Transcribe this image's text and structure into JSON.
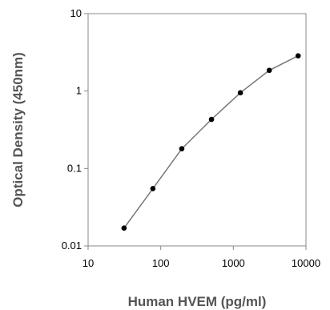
{
  "chart_data": {
    "type": "line",
    "x_scale": "log",
    "y_scale": "log",
    "xlabel": "Human HVEM (pg/ml)",
    "ylabel": "Optical Density (450nm)",
    "xlim": [
      10,
      10000
    ],
    "ylim": [
      0.01,
      10
    ],
    "x_ticks": [
      "10",
      "100",
      "1000",
      "10000"
    ],
    "y_ticks": [
      "0.01",
      "0.1",
      "1",
      "10"
    ],
    "grid": false,
    "series": [
      {
        "x": [
          31.25,
          78,
          195,
          500,
          1250,
          3125,
          7800
        ],
        "y": [
          0.017,
          0.055,
          0.18,
          0.43,
          0.95,
          1.85,
          2.85
        ]
      }
    ]
  }
}
